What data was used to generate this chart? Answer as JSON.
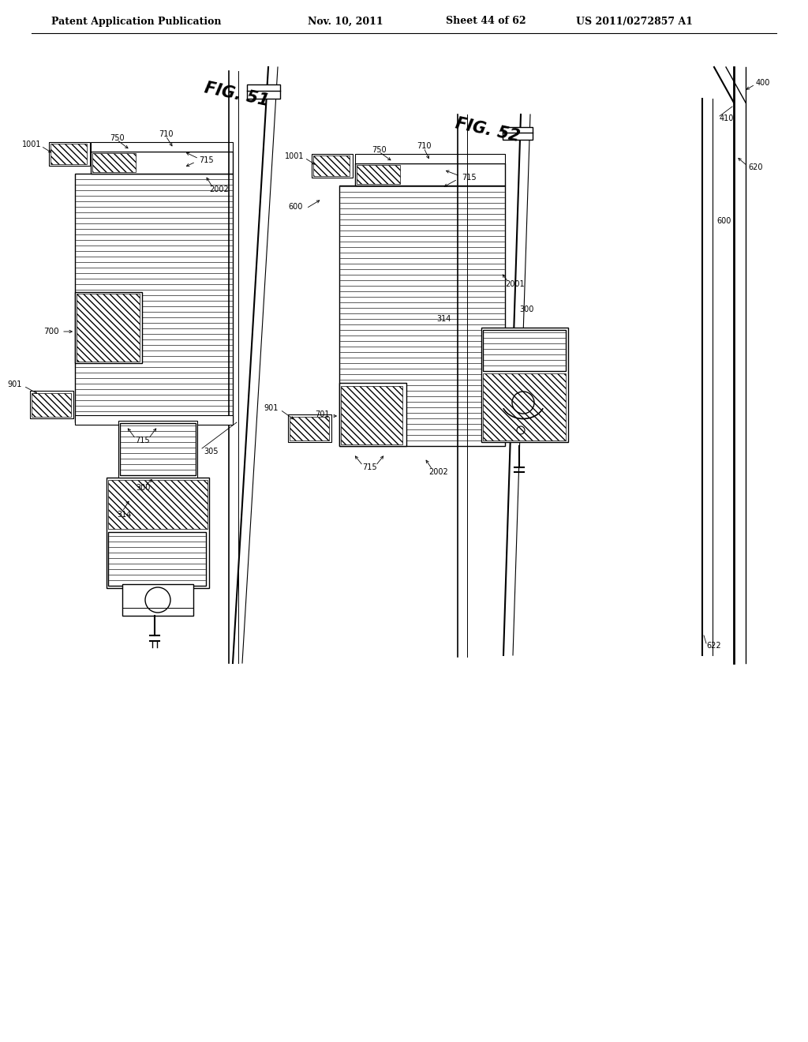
{
  "bg_color": "#ffffff",
  "header_text": "Patent Application Publication",
  "header_date": "Nov. 10, 2011",
  "header_sheet": "Sheet 44 of 62",
  "header_patent": "US 2011/0272857 A1",
  "fig51_label": "FIG. 51",
  "fig52_label": "FIG. 52",
  "line_color": "#000000",
  "hatch_color": "#000000"
}
